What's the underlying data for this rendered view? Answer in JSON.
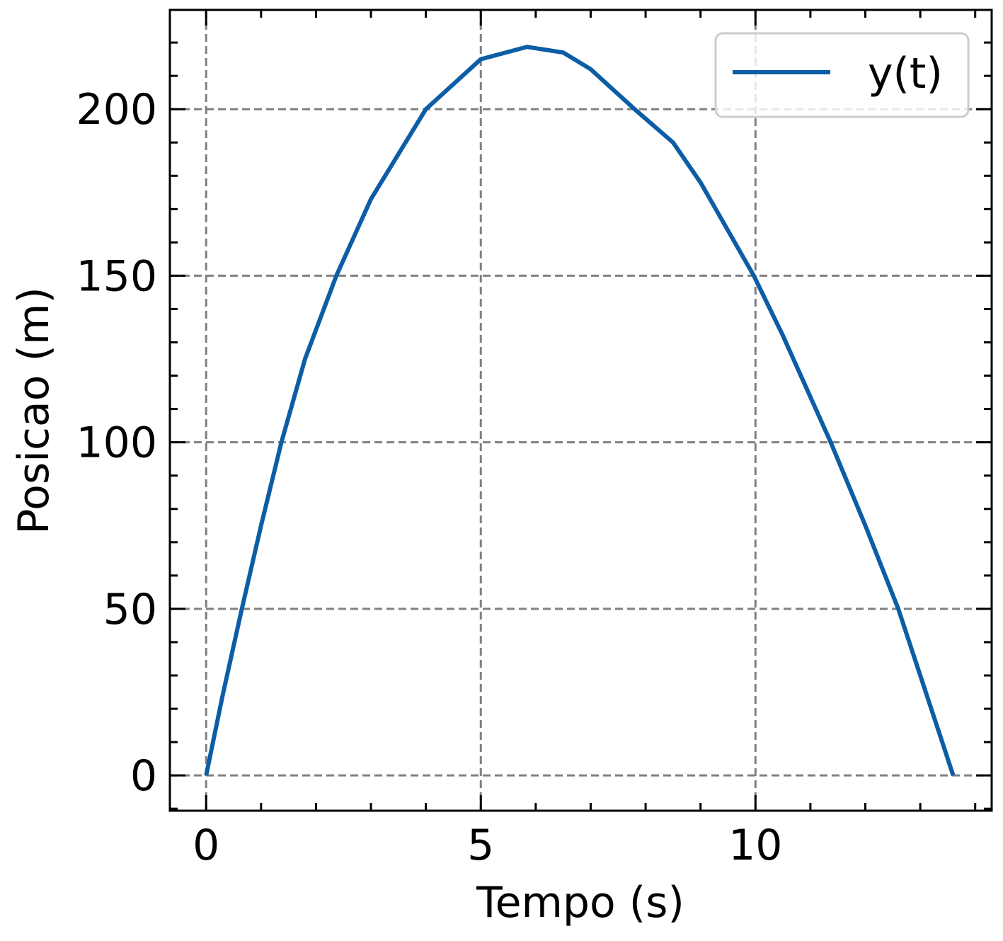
{
  "chart_data": {
    "type": "line",
    "xlabel": "Tempo (s)",
    "ylabel": "Posicao (m)",
    "x": [
      0,
      0.3,
      0.65,
      1.0,
      1.37,
      1.8,
      2.37,
      3.0,
      4.0,
      5.0,
      5.84,
      6.5,
      7.0,
      7.8,
      8.5,
      9.0,
      9.97,
      10.5,
      11.37,
      12.0,
      12.6,
      13.0,
      13.6
    ],
    "series": [
      {
        "name": "y(t)",
        "color": "#0c5da5",
        "values": [
          0,
          24,
          50,
          75,
          100,
          125,
          150,
          173,
          200,
          215,
          218.7,
          217,
          212,
          200,
          190,
          178,
          150,
          132,
          100,
          75,
          50,
          30,
          0
        ]
      }
    ],
    "xlim": [
      -0.66,
      14.3
    ],
    "ylim": [
      -10.6,
      229.8
    ],
    "xticks": [
      0,
      5,
      10
    ],
    "yticks": [
      0,
      50,
      100,
      150,
      200
    ],
    "grid": true,
    "legend": "upper right"
  }
}
